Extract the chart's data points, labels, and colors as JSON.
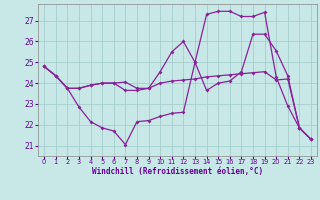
{
  "background_color": "#c8e8e8",
  "grid_color": "#a0c8c8",
  "line_color": "#882299",
  "xlabel": "Windchill (Refroidissement éolien,°C)",
  "xlabel_color": "#660099",
  "tick_color": "#660099",
  "ylim": [
    20.5,
    27.8
  ],
  "xlim": [
    -0.5,
    23.5
  ],
  "yticks": [
    21,
    22,
    23,
    24,
    25,
    26,
    27
  ],
  "xticks": [
    0,
    1,
    2,
    3,
    4,
    5,
    6,
    7,
    8,
    9,
    10,
    11,
    12,
    13,
    14,
    15,
    16,
    17,
    18,
    19,
    20,
    21,
    22,
    23
  ],
  "line1_x": [
    0,
    1,
    2,
    3,
    4,
    5,
    6,
    7,
    8,
    9,
    10,
    11,
    12,
    13,
    14,
    15,
    16,
    17,
    18,
    19,
    20,
    21,
    22,
    23
  ],
  "line1_y": [
    24.8,
    24.35,
    23.75,
    23.75,
    23.9,
    24.0,
    24.0,
    24.05,
    23.75,
    23.75,
    24.0,
    24.1,
    24.15,
    24.2,
    24.3,
    24.35,
    24.4,
    24.45,
    24.5,
    24.55,
    24.15,
    24.2,
    21.85,
    21.3
  ],
  "line2_x": [
    0,
    1,
    2,
    3,
    4,
    5,
    6,
    7,
    8,
    9,
    10,
    11,
    12,
    13,
    14,
    15,
    16,
    17,
    18,
    19,
    20,
    21,
    22,
    23
  ],
  "line2_y": [
    24.8,
    24.35,
    23.75,
    22.85,
    22.15,
    21.85,
    21.7,
    21.05,
    22.15,
    22.2,
    22.4,
    22.55,
    22.6,
    25.0,
    27.3,
    27.45,
    27.45,
    27.2,
    27.2,
    27.4,
    24.3,
    22.9,
    21.85,
    21.3
  ],
  "line3_x": [
    0,
    1,
    2,
    3,
    4,
    5,
    6,
    7,
    8,
    9,
    10,
    11,
    12,
    13,
    14,
    15,
    16,
    17,
    18,
    19,
    20,
    21,
    22,
    23
  ],
  "line3_y": [
    24.8,
    24.35,
    23.75,
    23.75,
    23.9,
    24.0,
    24.0,
    23.65,
    23.65,
    23.75,
    24.55,
    25.5,
    26.0,
    25.0,
    23.65,
    24.0,
    24.1,
    24.55,
    26.35,
    26.35,
    25.55,
    24.35,
    21.85,
    21.3
  ]
}
